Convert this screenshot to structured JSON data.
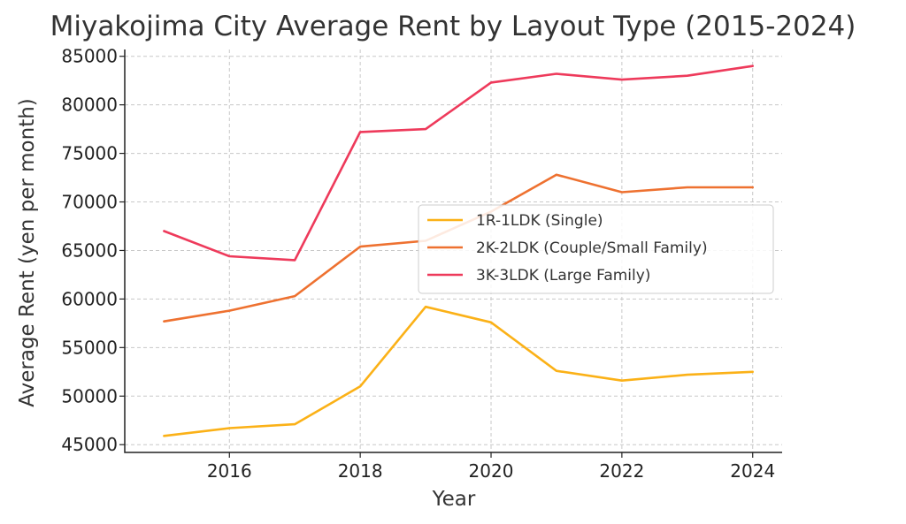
{
  "chart_data": {
    "type": "line",
    "title": "Miyakojima City Average Rent by Layout Type (2015-2024)",
    "xlabel": "Year",
    "ylabel": "Average Rent (yen per month)",
    "x": [
      2015,
      2016,
      2017,
      2018,
      2019,
      2020,
      2021,
      2022,
      2023,
      2024
    ],
    "xlim": [
      2014.4,
      2024.45
    ],
    "ylim": [
      44200,
      85700
    ],
    "xticks": [
      2016,
      2018,
      2020,
      2022,
      2024
    ],
    "yticks": [
      45000,
      50000,
      55000,
      60000,
      65000,
      70000,
      75000,
      80000,
      85000
    ],
    "grid": true,
    "legend_position": "center-right",
    "series": [
      {
        "name": "1R-1LDK (Single)",
        "color": "#FBB117",
        "values": [
          45900,
          46700,
          47100,
          51000,
          59200,
          57600,
          52600,
          51600,
          52200,
          52500
        ]
      },
      {
        "name": "2K-2LDK (Couple/Small Family)",
        "color": "#EE7130",
        "values": [
          57700,
          58800,
          60300,
          65400,
          66000,
          69000,
          72800,
          71000,
          71500,
          71500
        ]
      },
      {
        "name": "3K-3LDK (Large Family)",
        "color": "#EE3A5B",
        "values": [
          67000,
          64400,
          64000,
          77200,
          77500,
          82300,
          83200,
          82600,
          83000,
          84000
        ]
      }
    ]
  }
}
